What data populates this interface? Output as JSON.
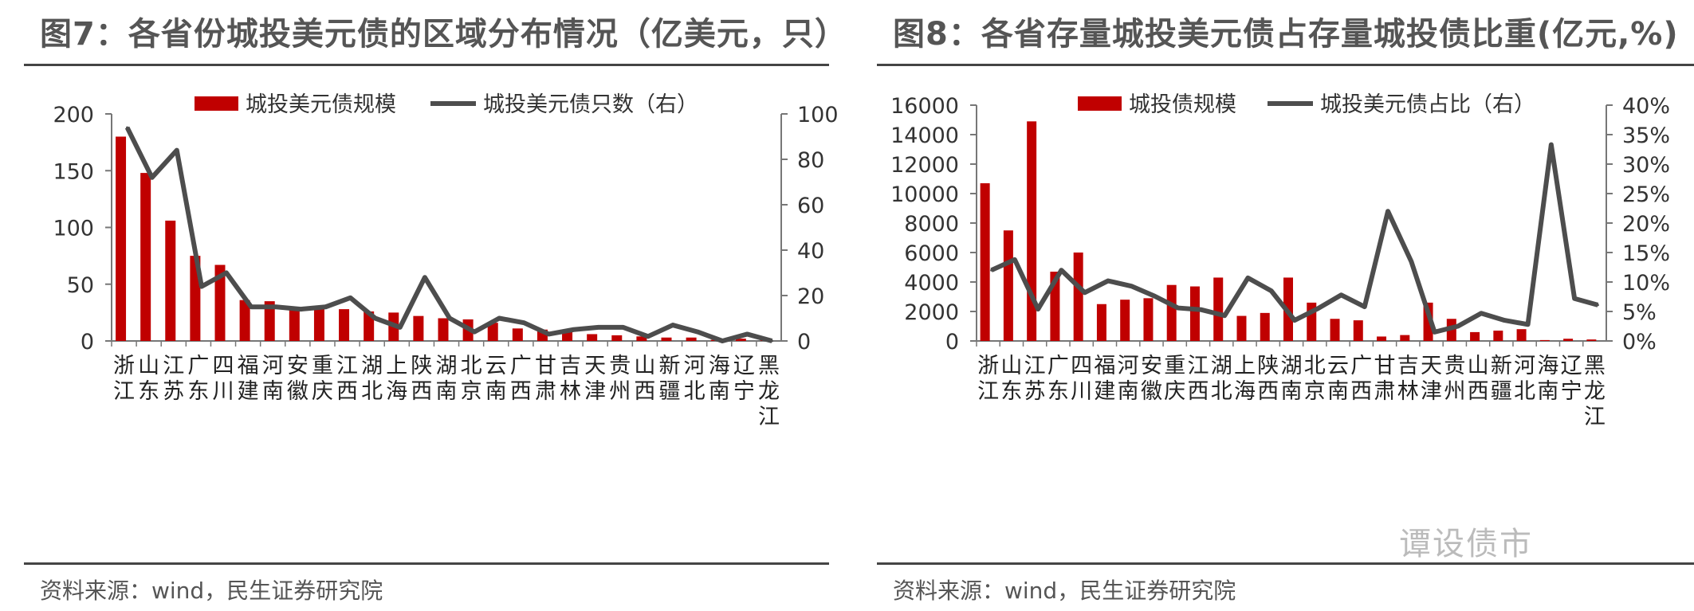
{
  "colors": {
    "bar": "#C00000",
    "line": "#4D4D4D",
    "axis": "#777777"
  },
  "watermark": "谭设债市",
  "chart_data": [
    {
      "type": "bar",
      "title": "图7：各省份城投美元债的区域分布情况（亿美元，只）",
      "source": "资料来源：wind，民生证券研究院",
      "categories": [
        "浙江",
        "山东",
        "江苏",
        "广东",
        "四川",
        "福建",
        "河南",
        "安徽",
        "重庆",
        "江西",
        "湖北",
        "上海",
        "陕西",
        "湖南",
        "北京",
        "云南",
        "广西",
        "甘肃",
        "吉林",
        "天津",
        "贵州",
        "山西",
        "新疆",
        "河北",
        "海南",
        "辽宁",
        "黑龙江"
      ],
      "series": [
        {
          "name": "城投美元债规模",
          "kind": "bar",
          "axis": "left",
          "values": [
            180,
            148,
            106,
            75,
            67,
            36,
            35,
            30,
            30,
            28,
            26,
            25,
            22,
            20,
            19,
            16,
            11,
            10,
            8,
            6,
            5,
            4,
            3,
            3,
            1,
            2,
            1
          ]
        },
        {
          "name": "城投美元债只数（右）",
          "kind": "line",
          "axis": "right",
          "values": [
            94,
            72,
            84,
            24,
            30,
            15,
            15,
            14,
            15,
            19,
            10,
            6,
            28,
            10,
            4,
            10,
            8,
            3,
            5,
            6,
            6,
            2,
            7,
            4,
            0,
            3,
            0
          ]
        }
      ],
      "ylim_left": [
        0,
        200
      ],
      "yticks_left": [
        "0",
        "50",
        "100",
        "150",
        "200"
      ],
      "ylim_right": [
        0,
        100
      ],
      "yticks_right": [
        "0",
        "20",
        "40",
        "60",
        "80",
        "100"
      ]
    },
    {
      "type": "bar",
      "title": "图8：各省存量城投美元债占存量城投债比重(亿元,%)",
      "source": "资料来源：wind，民生证券研究院",
      "categories": [
        "浙江",
        "山东",
        "江苏",
        "广东",
        "四川",
        "福建",
        "河南",
        "安徽",
        "重庆",
        "江西",
        "湖北",
        "上海",
        "陕西",
        "湖南",
        "北京",
        "云南",
        "广西",
        "甘肃",
        "吉林",
        "天津",
        "贵州",
        "山西",
        "新疆",
        "河北",
        "海南",
        "辽宁",
        "黑龙江"
      ],
      "series": [
        {
          "name": "城投债规模",
          "kind": "bar",
          "axis": "left",
          "values": [
            10700,
            7500,
            14900,
            4700,
            6000,
            2500,
            2800,
            2900,
            3800,
            3700,
            4300,
            1700,
            1900,
            4300,
            2600,
            1500,
            1400,
            300,
            400,
            2600,
            1500,
            600,
            700,
            800,
            60,
            150,
            100
          ]
        },
        {
          "name": "城投美元债占比（右）",
          "kind": "line",
          "axis": "right",
          "values": [
            12,
            13.8,
            5.4,
            12,
            8.2,
            10.2,
            9.3,
            7.6,
            5.6,
            5.3,
            4.3,
            10.7,
            8.5,
            3.5,
            5.5,
            7.8,
            5.8,
            22,
            13.5,
            1.5,
            2.5,
            4.7,
            3.5,
            2.8,
            33.3,
            7.2,
            6.1
          ]
        }
      ],
      "ylim_left": [
        0,
        16000
      ],
      "yticks_left": [
        "0",
        "2000",
        "4000",
        "6000",
        "8000",
        "10000",
        "12000",
        "14000",
        "16000"
      ],
      "ylim_right": [
        0,
        40
      ],
      "yticks_right": [
        "0%",
        "5%",
        "10%",
        "15%",
        "20%",
        "25%",
        "30%",
        "35%",
        "40%"
      ]
    }
  ]
}
